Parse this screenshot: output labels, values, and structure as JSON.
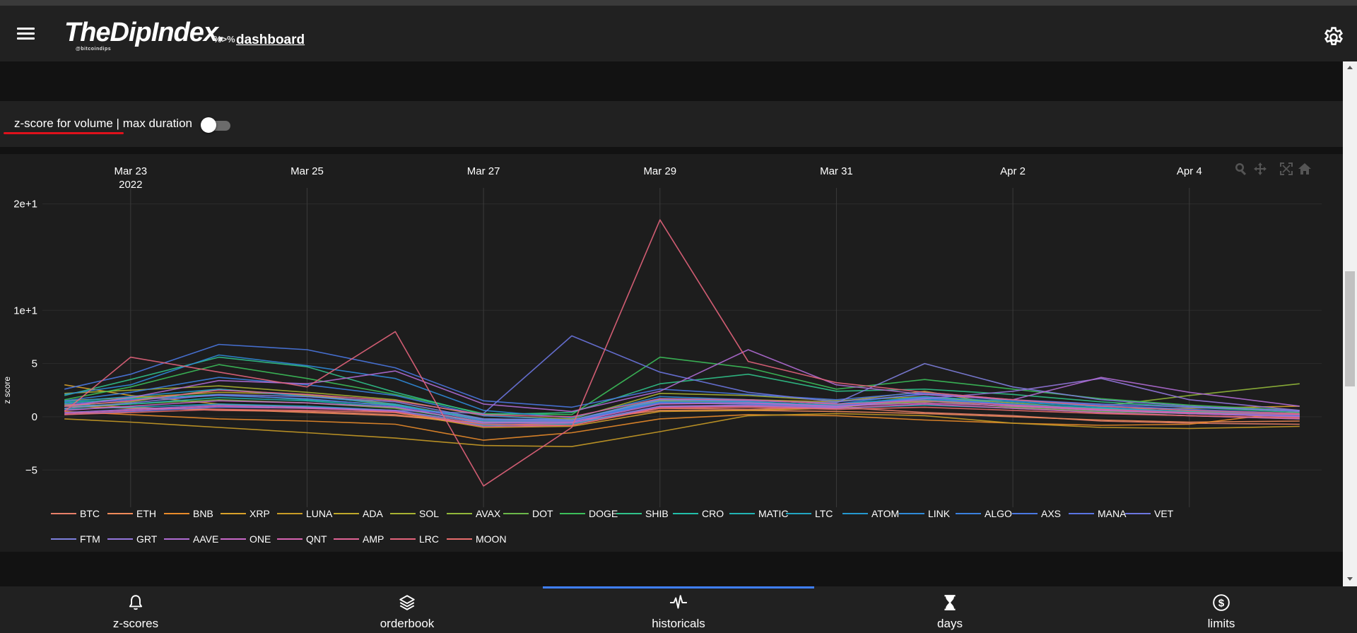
{
  "app": {
    "logo": "TheDipIndex.",
    "logo_sub": "@bitcoindips",
    "logo_tag": "%>%",
    "logo_link": "dashboard"
  },
  "controls": {
    "label_main": "z-score for volume",
    "label_sep": " | ",
    "label_rest": "max duration",
    "toggle_on": false
  },
  "nav": {
    "items": [
      {
        "label": "z-scores",
        "icon": "bell-icon"
      },
      {
        "label": "orderbook",
        "icon": "layers-icon"
      },
      {
        "label": "historicals",
        "icon": "pulse-icon"
      },
      {
        "label": "days",
        "icon": "hourglass-icon"
      },
      {
        "label": "limits",
        "icon": "dollar-icon"
      }
    ],
    "active_index": 2
  },
  "chart_data": {
    "type": "line",
    "ylabel": "z score",
    "ylim": [
      -8.5,
      21.5
    ],
    "yticks": [
      {
        "v": 20,
        "label": "2e+1"
      },
      {
        "v": 10,
        "label": "1e+1"
      },
      {
        "v": 5,
        "label": "5"
      },
      {
        "v": 0,
        "label": "0"
      },
      {
        "v": -5,
        "label": "−5"
      }
    ],
    "xlim": [
      "2022-03-22T00:00",
      "2022-04-05T12:00"
    ],
    "xticks": [
      {
        "date": "2022-03-23",
        "label": "Mar 23",
        "sub": "2022"
      },
      {
        "date": "2022-03-25",
        "label": "Mar 25",
        "sub": ""
      },
      {
        "date": "2022-03-27",
        "label": "Mar 27",
        "sub": ""
      },
      {
        "date": "2022-03-29",
        "label": "Mar 29",
        "sub": ""
      },
      {
        "date": "2022-03-31",
        "label": "Mar 31",
        "sub": ""
      },
      {
        "date": "2022-04-02",
        "label": "Apr 2",
        "sub": ""
      },
      {
        "date": "2022-04-04",
        "label": "Apr 4",
        "sub": ""
      }
    ],
    "grid": true,
    "legend_position": "bottom",
    "x_dates": [
      "2022-03-22T06:00",
      "2022-03-23T00:00",
      "2022-03-24T00:00",
      "2022-03-25T00:00",
      "2022-03-26T00:00",
      "2022-03-27T00:00",
      "2022-03-28T00:00",
      "2022-03-29T00:00",
      "2022-03-30T00:00",
      "2022-03-31T00:00",
      "2022-04-01T00:00",
      "2022-04-02T00:00",
      "2022-04-03T00:00",
      "2022-04-04T00:00",
      "2022-04-05T06:00"
    ],
    "series": [
      {
        "name": "BTC",
        "color": "#e8806a",
        "values": [
          1.2,
          0.9,
          0.6,
          0.5,
          0.2,
          -0.8,
          -0.6,
          0.8,
          0.7,
          0.9,
          0.4,
          0.1,
          -0.4,
          -0.6,
          -0.7
        ]
      },
      {
        "name": "ETH",
        "color": "#f08a5a",
        "values": [
          1.0,
          0.8,
          0.7,
          0.4,
          0.1,
          -0.6,
          -0.4,
          0.6,
          0.6,
          0.5,
          0.3,
          0.0,
          -0.3,
          -0.5,
          -0.4
        ]
      },
      {
        "name": "BNB",
        "color": "#e98b2a",
        "values": [
          0.5,
          0.2,
          -0.2,
          -0.4,
          -0.7,
          -2.2,
          -1.5,
          -0.2,
          0.2,
          0.1,
          -0.3,
          -0.6,
          -0.8,
          -0.7,
          0.5
        ]
      },
      {
        "name": "XRP",
        "color": "#d9a12a",
        "values": [
          3.0,
          2.0,
          1.2,
          0.9,
          0.4,
          -1.0,
          -0.9,
          0.5,
          0.6,
          0.8,
          1.9,
          1.1,
          0.7,
          0.8,
          1.0
        ]
      },
      {
        "name": "LUNA",
        "color": "#c89b26",
        "values": [
          -0.2,
          -0.5,
          -1.0,
          -1.5,
          -2.0,
          -2.7,
          -2.8,
          -1.4,
          0.1,
          0.3,
          0.1,
          -0.6,
          -1.0,
          -1.1,
          -0.9
        ]
      },
      {
        "name": "ADA",
        "color": "#bfa92a",
        "values": [
          1.5,
          1.8,
          2.3,
          2.1,
          1.2,
          -0.3,
          -0.4,
          1.5,
          1.6,
          1.4,
          2.4,
          1.0,
          0.8,
          0.5,
          0.2
        ]
      },
      {
        "name": "SOL",
        "color": "#a8b232",
        "values": [
          2.2,
          2.5,
          2.9,
          2.3,
          1.6,
          0.1,
          -0.2,
          2.2,
          2.0,
          1.5,
          1.9,
          1.3,
          0.7,
          0.3,
          0.1
        ]
      },
      {
        "name": "AVAX",
        "color": "#92b83a",
        "values": [
          1.1,
          1.4,
          2.6,
          2.0,
          1.1,
          -0.4,
          -0.3,
          1.5,
          1.4,
          1.1,
          1.4,
          1.6,
          1.0,
          2.0,
          3.1
        ]
      },
      {
        "name": "DOT",
        "color": "#6bb84a",
        "values": [
          0.8,
          1.2,
          1.6,
          1.3,
          0.8,
          -0.5,
          -0.4,
          1.3,
          1.2,
          0.9,
          1.5,
          0.9,
          0.5,
          0.3,
          0.2
        ]
      },
      {
        "name": "DOGE",
        "color": "#3cbf5a",
        "values": [
          1.6,
          2.8,
          4.9,
          3.6,
          2.1,
          0.3,
          0.2,
          5.6,
          4.6,
          2.6,
          3.5,
          2.6,
          1.7,
          1.1,
          0.6
        ]
      },
      {
        "name": "SHIB",
        "color": "#30c28a",
        "values": [
          2.0,
          3.5,
          5.6,
          4.7,
          2.3,
          0.2,
          0.4,
          3.1,
          4.0,
          2.4,
          2.6,
          2.1,
          1.4,
          0.9,
          0.4
        ]
      },
      {
        "name": "CRO",
        "color": "#22bfaa",
        "values": [
          1.3,
          1.7,
          2.1,
          1.6,
          1.1,
          -0.2,
          -0.3,
          1.7,
          1.6,
          1.2,
          1.8,
          1.2,
          0.8,
          0.5,
          0.2
        ]
      },
      {
        "name": "MATIC",
        "color": "#22b4b4",
        "values": [
          1.0,
          1.2,
          1.8,
          1.5,
          0.9,
          -0.6,
          -0.5,
          1.4,
          1.3,
          1.0,
          1.6,
          1.1,
          0.6,
          0.3,
          0.0
        ]
      },
      {
        "name": "LTC",
        "color": "#22a6c2",
        "values": [
          0.7,
          0.9,
          1.2,
          1.0,
          0.6,
          -0.8,
          -0.7,
          1.0,
          1.0,
          0.8,
          1.1,
          0.8,
          0.4,
          0.1,
          -0.2
        ]
      },
      {
        "name": "ATOM",
        "color": "#2598cf",
        "values": [
          1.4,
          1.9,
          2.6,
          1.9,
          1.2,
          -0.4,
          -0.5,
          1.6,
          1.4,
          1.1,
          1.9,
          1.4,
          0.9,
          0.4,
          0.1
        ]
      },
      {
        "name": "LINK",
        "color": "#2f8ad8",
        "values": [
          2.1,
          3.0,
          5.8,
          4.8,
          3.6,
          0.6,
          -0.1,
          1.9,
          1.6,
          1.2,
          2.2,
          1.5,
          1.0,
          0.6,
          0.2
        ]
      },
      {
        "name": "ALGO",
        "color": "#3a80de",
        "values": [
          1.5,
          2.3,
          3.7,
          3.0,
          2.0,
          0.1,
          -0.3,
          1.4,
          1.3,
          1.0,
          1.7,
          1.2,
          0.7,
          0.3,
          0.0
        ]
      },
      {
        "name": "AXS",
        "color": "#4a78e2",
        "values": [
          2.6,
          4.0,
          6.8,
          6.3,
          4.6,
          1.5,
          0.9,
          2.6,
          2.1,
          1.6,
          2.3,
          1.6,
          1.1,
          0.7,
          0.3
        ]
      },
      {
        "name": "MANA",
        "color": "#5a74e2",
        "values": [
          1.2,
          1.6,
          2.0,
          1.7,
          1.0,
          -0.3,
          -0.4,
          1.3,
          1.2,
          1.0,
          1.8,
          1.1,
          0.7,
          0.4,
          0.1
        ]
      },
      {
        "name": "VET",
        "color": "#6c76e0",
        "values": [
          0.2,
          0.5,
          0.9,
          0.8,
          0.6,
          0.3,
          7.6,
          4.2,
          2.3,
          1.4,
          2.1,
          1.6,
          1.2,
          0.9,
          0.6
        ]
      },
      {
        "name": "FTM",
        "color": "#7e80de",
        "values": [
          0.8,
          1.3,
          2.1,
          1.9,
          1.4,
          -0.2,
          -0.3,
          1.6,
          1.5,
          1.3,
          5.0,
          2.8,
          1.6,
          1.0,
          0.5
        ]
      },
      {
        "name": "GRT",
        "color": "#9476dc",
        "values": [
          0.4,
          0.7,
          1.1,
          0.9,
          0.6,
          -0.6,
          -0.6,
          1.0,
          1.1,
          0.9,
          1.7,
          2.4,
          3.6,
          1.6,
          0.6
        ]
      },
      {
        "name": "AAVE",
        "color": "#b06cd4",
        "values": [
          1.0,
          1.8,
          3.4,
          3.1,
          4.3,
          1.2,
          0.5,
          2.4,
          6.3,
          3.0,
          2.1,
          1.6,
          3.7,
          2.3,
          1.0
        ]
      },
      {
        "name": "ONE",
        "color": "#c968c8",
        "values": [
          0.6,
          1.0,
          1.5,
          1.3,
          0.9,
          -0.5,
          -0.5,
          1.2,
          1.3,
          1.0,
          1.3,
          1.0,
          0.6,
          0.3,
          0.0
        ]
      },
      {
        "name": "QNT",
        "color": "#d864b2",
        "values": [
          0.3,
          0.6,
          1.0,
          0.8,
          0.5,
          -0.9,
          -0.8,
          0.9,
          1.0,
          0.8,
          1.2,
          0.8,
          0.4,
          0.1,
          -0.2
        ]
      },
      {
        "name": "AMP",
        "color": "#e06496",
        "values": [
          1.0,
          1.5,
          2.5,
          2.1,
          1.5,
          0.2,
          0.0,
          1.7,
          1.6,
          1.2,
          1.5,
          1.1,
          0.7,
          0.4,
          0.2
        ]
      },
      {
        "name": "LRC",
        "color": "#e4647c",
        "values": [
          0.5,
          5.6,
          4.2,
          2.8,
          8.0,
          -6.5,
          -1.0,
          18.5,
          5.2,
          3.2,
          2.3,
          1.6,
          1.0,
          0.6,
          0.3
        ]
      },
      {
        "name": "MOON",
        "color": "#e86c6c",
        "values": [
          0.2,
          0.4,
          0.7,
          0.6,
          0.4,
          -0.7,
          -0.8,
          0.8,
          0.9,
          0.7,
          0.9,
          0.6,
          0.3,
          0.1,
          -0.1
        ]
      }
    ]
  }
}
